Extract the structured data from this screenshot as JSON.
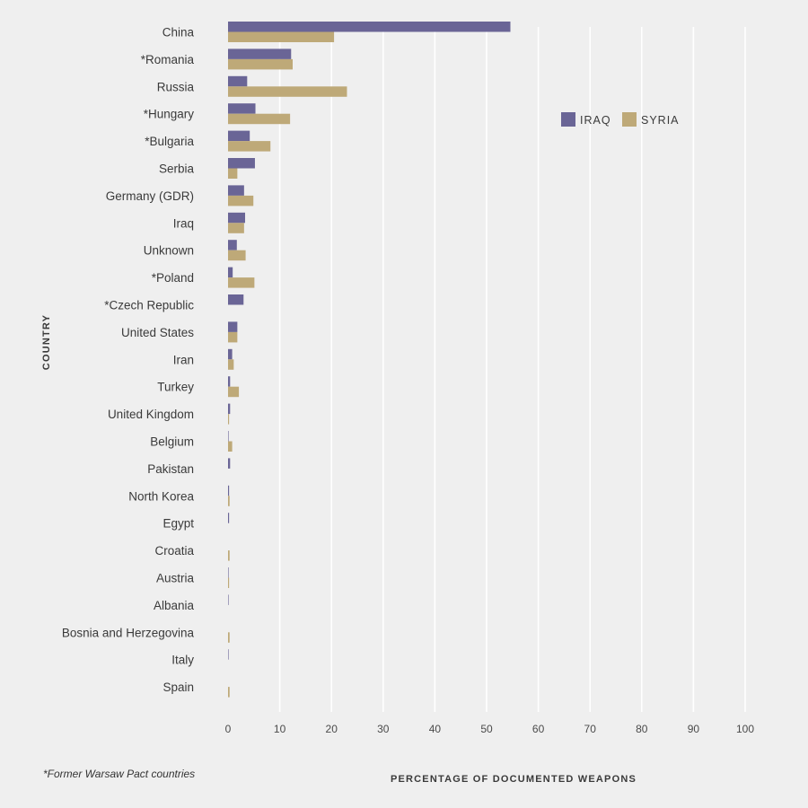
{
  "chart_data": {
    "type": "bar",
    "orientation": "horizontal",
    "title": "",
    "xlabel": "PERCENTAGE OF DOCUMENTED WEAPONS",
    "ylabel": "COUNTRY",
    "xlim": [
      0,
      100
    ],
    "x_ticks": [
      0,
      10,
      20,
      30,
      40,
      50,
      60,
      70,
      80,
      90,
      100
    ],
    "grid": true,
    "legend_position": "top-right",
    "categories": [
      "China",
      "*Romania",
      "Russia",
      "*Hungary",
      "*Bulgaria",
      "Serbia",
      "Germany (GDR)",
      "Iraq",
      "Unknown",
      "*Poland",
      "*Czech Republic",
      "United States",
      "Iran",
      "Turkey",
      "United Kingdom",
      "Belgium",
      "Pakistan",
      "North Korea",
      "Egypt",
      "Croatia",
      "Austria",
      "Albania",
      "Bosnia and Herzegovina",
      "Italy",
      "Spain"
    ],
    "series": [
      {
        "name": "IRAQ",
        "color": "#6a6596",
        "values": [
          54.6,
          12.2,
          3.7,
          5.3,
          4.2,
          5.2,
          3.1,
          3.3,
          1.7,
          0.9,
          3.0,
          1.8,
          0.8,
          0.4,
          0.4,
          0.1,
          0.4,
          0.2,
          0.2,
          0.0,
          0.1,
          0.1,
          0.0,
          0.1,
          0.0
        ]
      },
      {
        "name": "SYRIA",
        "color": "#bea978",
        "values": [
          20.5,
          12.5,
          23.0,
          12.0,
          8.2,
          1.8,
          4.9,
          3.1,
          3.4,
          5.1,
          0.0,
          1.8,
          1.1,
          2.1,
          0.2,
          0.8,
          0.0,
          0.3,
          0.0,
          0.3,
          0.2,
          0.0,
          0.3,
          0.0,
          0.3
        ]
      }
    ]
  },
  "footnote": "*Former Warsaw Pact countries"
}
